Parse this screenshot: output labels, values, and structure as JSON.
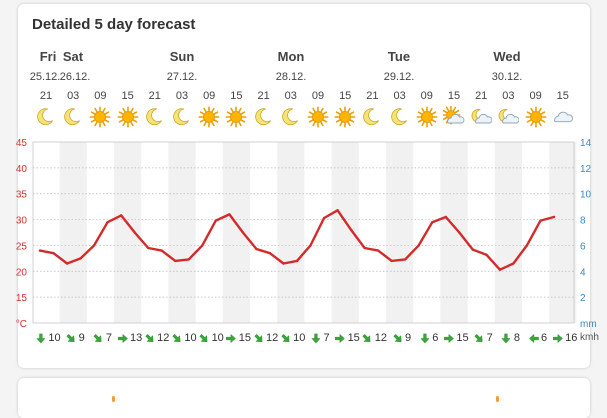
{
  "title": "Detailed 5 day forecast",
  "days": [
    {
      "name": "Fri",
      "date": "25.12."
    },
    {
      "name": "Sat",
      "date": "26.12."
    },
    {
      "name": "Sun",
      "date": "27.12."
    },
    {
      "name": "Mon",
      "date": "28.12."
    },
    {
      "name": "Tue",
      "date": "29.12."
    },
    {
      "name": "Wed",
      "date": "30.12."
    }
  ],
  "slots": [
    {
      "hour": "21",
      "icon": "moon",
      "wind": "10",
      "dir": "down"
    },
    {
      "hour": "03",
      "icon": "moon",
      "wind": "9",
      "dir": "down-right"
    },
    {
      "hour": "09",
      "icon": "sun",
      "wind": "7",
      "dir": "down-right"
    },
    {
      "hour": "15",
      "icon": "sun",
      "wind": "13",
      "dir": "right"
    },
    {
      "hour": "21",
      "icon": "moon",
      "wind": "12",
      "dir": "down-right"
    },
    {
      "hour": "03",
      "icon": "moon",
      "wind": "10",
      "dir": "down-right"
    },
    {
      "hour": "09",
      "icon": "sun",
      "wind": "10",
      "dir": "down-right"
    },
    {
      "hour": "15",
      "icon": "sun",
      "wind": "15",
      "dir": "right"
    },
    {
      "hour": "21",
      "icon": "moon",
      "wind": "12",
      "dir": "down-right"
    },
    {
      "hour": "03",
      "icon": "moon",
      "wind": "10",
      "dir": "down-right"
    },
    {
      "hour": "09",
      "icon": "sun",
      "wind": "7",
      "dir": "down"
    },
    {
      "hour": "15",
      "icon": "sun",
      "wind": "15",
      "dir": "right"
    },
    {
      "hour": "21",
      "icon": "moon",
      "wind": "12",
      "dir": "down-right"
    },
    {
      "hour": "03",
      "icon": "moon",
      "wind": "9",
      "dir": "down-right"
    },
    {
      "hour": "09",
      "icon": "sun",
      "wind": "6",
      "dir": "down"
    },
    {
      "hour": "15",
      "icon": "sun-cloud",
      "wind": "15",
      "dir": "right"
    },
    {
      "hour": "21",
      "icon": "moon-cloud",
      "wind": "7",
      "dir": "down-right"
    },
    {
      "hour": "03",
      "icon": "moon-cloud",
      "wind": "8",
      "dir": "down"
    },
    {
      "hour": "09",
      "icon": "sun",
      "wind": "6",
      "dir": "left"
    },
    {
      "hour": "15",
      "icon": "cloud",
      "wind": "16",
      "dir": "right"
    }
  ],
  "chart_data": {
    "type": "line",
    "y_left_ticks": [
      "45",
      "40",
      "35",
      "30",
      "25",
      "20",
      "15",
      "°C"
    ],
    "y_right_ticks": [
      "14",
      "12",
      "10",
      "8",
      "6",
      "4",
      "2",
      "mm"
    ],
    "ylim": [
      10,
      45
    ],
    "series": [
      {
        "values": [
          24,
          23.5,
          21.5,
          22.5,
          25,
          29.5,
          30.8,
          27.5,
          24.5,
          24,
          22,
          22.3,
          25,
          29.8,
          31,
          27.5,
          24.3,
          23.5,
          21.5,
          22,
          25,
          30.3,
          31.8,
          28,
          24.5,
          24,
          22,
          22.3,
          25,
          29.5,
          30.5,
          27.5,
          24.2,
          23.2,
          20.3,
          21.5,
          25,
          29.8,
          30.5
        ]
      }
    ],
    "line_color": "#d42a2a",
    "left_axis_color": "#d32f2f",
    "right_axis_color": "#3a89c9"
  },
  "wind_unit": "kmh"
}
